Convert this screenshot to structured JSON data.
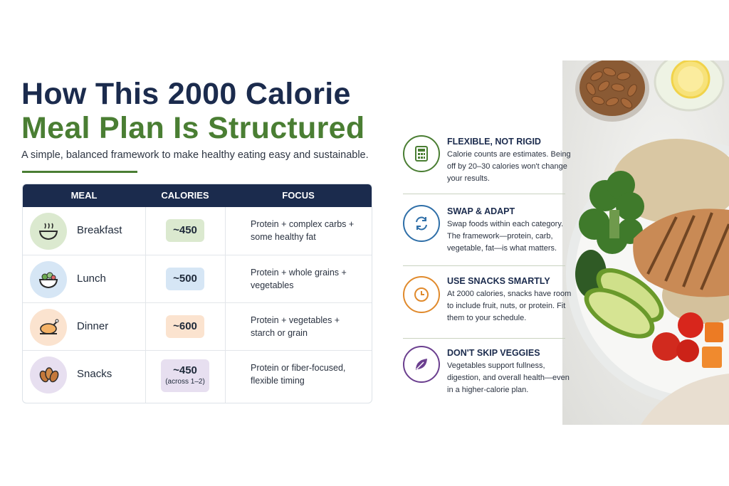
{
  "header": {
    "title_line1": "How This 2000 Calorie",
    "title_line2": "Meal Plan Is Structured",
    "subtitle": "A simple, balanced framework to make healthy eating easy and sustainable."
  },
  "table": {
    "columns": [
      "MEAL",
      "CALORIES",
      "FOCUS"
    ],
    "rows": [
      {
        "meal": "Breakfast",
        "icon": "bowl-icon",
        "calories": "~450",
        "note": "",
        "focus": "Protein + complex carbs + some healthy fat",
        "color": "#dbe9cf"
      },
      {
        "meal": "Lunch",
        "icon": "salad-bowl-icon",
        "calories": "~500",
        "note": "",
        "focus": "Protein + whole grains + vegetables",
        "color": "#d6e6f5"
      },
      {
        "meal": "Dinner",
        "icon": "roast-chicken-icon",
        "calories": "~600",
        "note": "",
        "focus": "Protein + vegetables + starch or grain",
        "color": "#fbe3cf"
      },
      {
        "meal": "Snacks",
        "icon": "almonds-icon",
        "calories": "~450",
        "note": "(across 1–2)",
        "focus": "Protein or fiber-focused, flexible timing",
        "color": "#e7dff0"
      }
    ]
  },
  "tips": [
    {
      "icon": "calculator-icon",
      "title": "FLEXIBLE, NOT RIGID",
      "text": "Calorie counts are estimates. Being off by 20–30 calories won't change your results.",
      "color": "#4a7e33"
    },
    {
      "icon": "swap-arrows-icon",
      "title": "SWAP & ADAPT",
      "text": "Swap foods within each category. The framework—protein, carb, vegetable, fat—is what matters.",
      "color": "#2f6fa8"
    },
    {
      "icon": "clock-icon",
      "title": "USE SNACKS SMARTLY",
      "text": "At 2000 calories, snacks have room to include fruit, nuts, or protein. Fit them to your schedule.",
      "color": "#e08a2c"
    },
    {
      "icon": "leaf-icon",
      "title": "DON'T SKIP VEGGIES",
      "text": "Vegetables support fullness, digestion, and overall health—even in a higher-calorie plan.",
      "color": "#6b3f8f"
    }
  ]
}
